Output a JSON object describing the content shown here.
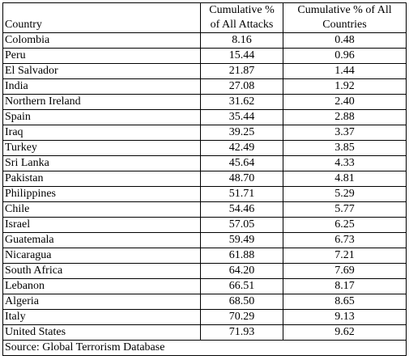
{
  "table": {
    "headers": {
      "country": "Country",
      "attacks_line1": "Cumulative %",
      "attacks_line2": "of All Attacks",
      "countries_line1": "Cumulative % of All",
      "countries_line2": "Countries"
    },
    "rows": [
      {
        "country": "Colombia",
        "attacks": "8.16",
        "countries": "0.48"
      },
      {
        "country": "Peru",
        "attacks": "15.44",
        "countries": "0.96"
      },
      {
        "country": "El Salvador",
        "attacks": "21.87",
        "countries": "1.44"
      },
      {
        "country": "India",
        "attacks": "27.08",
        "countries": "1.92"
      },
      {
        "country": "Northern Ireland",
        "attacks": "31.62",
        "countries": "2.40"
      },
      {
        "country": "Spain",
        "attacks": "35.44",
        "countries": "2.88"
      },
      {
        "country": "Iraq",
        "attacks": "39.25",
        "countries": "3.37"
      },
      {
        "country": "Turkey",
        "attacks": "42.49",
        "countries": "3.85"
      },
      {
        "country": "Sri Lanka",
        "attacks": "45.64",
        "countries": "4.33"
      },
      {
        "country": "Pakistan",
        "attacks": "48.70",
        "countries": "4.81"
      },
      {
        "country": "Philippines",
        "attacks": "51.71",
        "countries": "5.29"
      },
      {
        "country": "Chile",
        "attacks": "54.46",
        "countries": "5.77"
      },
      {
        "country": "Israel",
        "attacks": "57.05",
        "countries": "6.25"
      },
      {
        "country": "Guatemala",
        "attacks": "59.49",
        "countries": "6.73"
      },
      {
        "country": "Nicaragua",
        "attacks": "61.88",
        "countries": "7.21"
      },
      {
        "country": "South Africa",
        "attacks": "64.20",
        "countries": "7.69"
      },
      {
        "country": "Lebanon",
        "attacks": "66.51",
        "countries": "8.17"
      },
      {
        "country": "Algeria",
        "attacks": "68.50",
        "countries": "8.65"
      },
      {
        "country": "Italy",
        "attacks": "70.29",
        "countries": "9.13"
      },
      {
        "country": "United States",
        "attacks": "71.93",
        "countries": "9.62"
      }
    ],
    "source": "Source: Global Terrorism Database"
  }
}
